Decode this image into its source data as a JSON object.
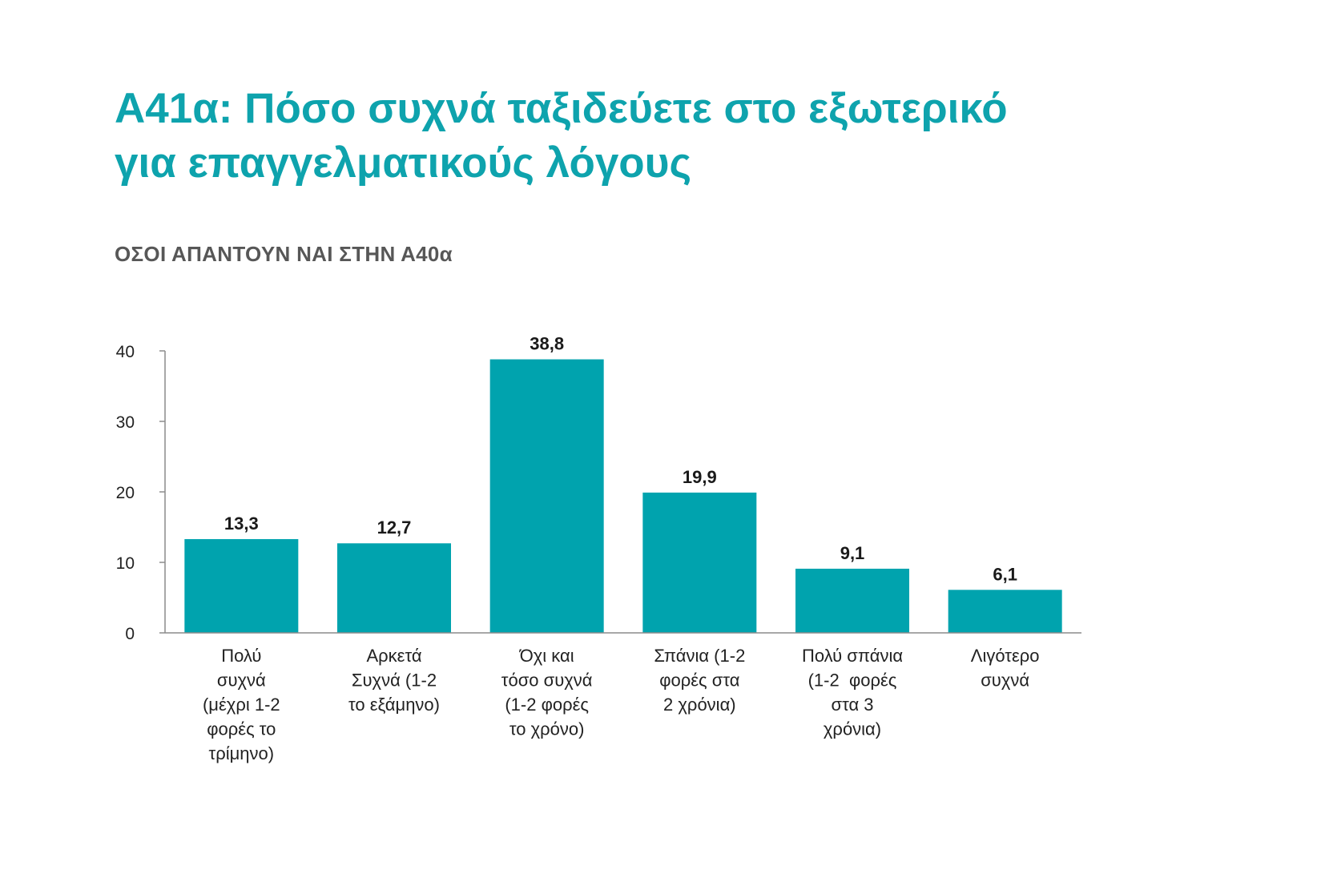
{
  "header": {
    "title_line1": "Α41α: Πόσο συχνά ταξιδεύετε στο εξωτερικό",
    "title_line2": "για επαγγελματικούς λόγους",
    "subtitle": "ΟΣΟΙ ΑΠΑΝΤΟΥΝ ΝΑΙ ΣΤΗΝ Α40α"
  },
  "chart_data": {
    "type": "bar",
    "title": "Α41α: Πόσο συχνά ταξιδεύετε στο εξωτερικό για επαγγελματικούς λόγους",
    "subtitle": "ΟΣΟΙ ΑΠΑΝΤΟΥΝ ΝΑΙ ΣΤΗΝ Α40α",
    "xlabel": "",
    "ylabel": "",
    "ylim": [
      0,
      40
    ],
    "yticks": [
      0,
      10,
      20,
      30,
      40
    ],
    "grid": false,
    "legend": "none",
    "bar_color": "#00a3ae",
    "categories": [
      [
        "Πολύ",
        "συχνά",
        "(μέχρι 1-2",
        "φορές το",
        "τρίμηνο)"
      ],
      [
        "Αρκετά",
        "Συχνά (1-2",
        "το εξάμηνο)"
      ],
      [
        "Όχι και",
        "τόσο συχνά",
        "(1-2 φορές",
        "το χρόνο)"
      ],
      [
        "Σπάνια (1-2",
        "φορές στα",
        "2 χρόνια)"
      ],
      [
        "Πολύ σπάνια",
        "(1-2  φορές",
        "στα 3",
        "χρόνια)"
      ],
      [
        "Λιγότερο",
        "συχνά"
      ]
    ],
    "values": [
      13.3,
      12.7,
      38.8,
      19.9,
      9.1,
      6.1
    ],
    "value_labels": [
      "13,3",
      "12,7",
      "38,8",
      "19,9",
      "9,1",
      "6,1"
    ]
  }
}
